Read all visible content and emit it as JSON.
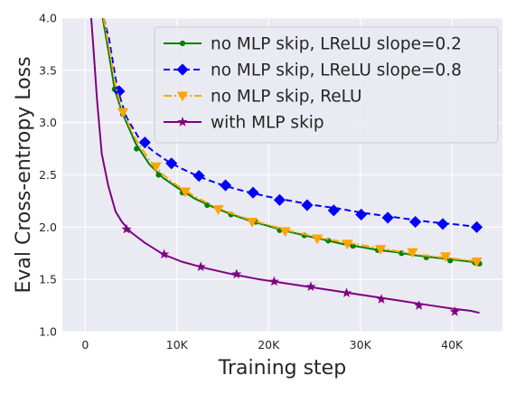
{
  "chart_data": {
    "type": "line",
    "xlabel": "Training step",
    "ylabel": "Eval Cross-entropy Loss",
    "xlim": [
      -2500,
      45500
    ],
    "ylim": [
      1.0,
      4.0
    ],
    "x_ticks": [
      0,
      10000,
      20000,
      30000,
      40000
    ],
    "x_tick_labels": [
      "0",
      "10K",
      "20K",
      "30K",
      "40K"
    ],
    "y_ticks": [
      1.0,
      1.5,
      2.0,
      2.5,
      3.0,
      3.5,
      4.0
    ],
    "y_tick_labels": [
      "1.0",
      "1.5",
      "2.0",
      "2.5",
      "3.0",
      "3.5",
      "4.0"
    ],
    "grid": true,
    "legend_position": "top-right",
    "series": [
      {
        "name": "no MLP skip, LReLU slope=0.2",
        "color": "#008000",
        "marker": "point",
        "dash": "solid",
        "curve": [
          [
            1900,
            4.0
          ],
          [
            2500,
            3.7
          ],
          [
            3200,
            3.32
          ],
          [
            4000,
            3.1
          ],
          [
            5500,
            2.8
          ],
          [
            7000,
            2.6
          ],
          [
            8500,
            2.47
          ],
          [
            10000,
            2.38
          ],
          [
            12000,
            2.27
          ],
          [
            14000,
            2.19
          ],
          [
            16000,
            2.12
          ],
          [
            18000,
            2.06
          ],
          [
            20000,
            2.01
          ],
          [
            22000,
            1.96
          ],
          [
            24000,
            1.92
          ],
          [
            26000,
            1.88
          ],
          [
            28000,
            1.84
          ],
          [
            30000,
            1.81
          ],
          [
            32000,
            1.78
          ],
          [
            34000,
            1.76
          ],
          [
            36000,
            1.73
          ],
          [
            38000,
            1.71
          ],
          [
            40000,
            1.69
          ],
          [
            42000,
            1.67
          ],
          [
            43000,
            1.65
          ]
        ],
        "markers": [
          [
            3200,
            3.32
          ],
          [
            4100,
            3.08
          ],
          [
            5600,
            2.75
          ],
          [
            8000,
            2.5
          ],
          [
            10600,
            2.33
          ],
          [
            13300,
            2.21
          ],
          [
            15900,
            2.12
          ],
          [
            18600,
            2.05
          ],
          [
            21200,
            1.97
          ],
          [
            23900,
            1.92
          ],
          [
            26500,
            1.87
          ],
          [
            29200,
            1.82
          ],
          [
            31900,
            1.78
          ],
          [
            34500,
            1.75
          ],
          [
            37200,
            1.71
          ],
          [
            39800,
            1.68
          ],
          [
            42500,
            1.66
          ],
          [
            43000,
            1.65
          ]
        ]
      },
      {
        "name": "no MLP skip, LReLU slope=0.8",
        "color": "#0000FF",
        "marker": "diamond",
        "dash": "dashed",
        "curve": [
          [
            2000,
            4.0
          ],
          [
            2600,
            3.8
          ],
          [
            3500,
            3.32
          ],
          [
            4500,
            3.05
          ],
          [
            6000,
            2.83
          ],
          [
            7500,
            2.72
          ],
          [
            9000,
            2.63
          ],
          [
            10500,
            2.56
          ],
          [
            12500,
            2.48
          ],
          [
            15000,
            2.4
          ],
          [
            17500,
            2.34
          ],
          [
            20000,
            2.29
          ],
          [
            22500,
            2.25
          ],
          [
            25000,
            2.21
          ],
          [
            27500,
            2.18
          ],
          [
            30000,
            2.14
          ],
          [
            32500,
            2.11
          ],
          [
            35000,
            2.08
          ],
          [
            37500,
            2.05
          ],
          [
            40000,
            2.03
          ],
          [
            43000,
            2.0
          ]
        ],
        "markers": [
          [
            3700,
            3.3
          ],
          [
            6500,
            2.81
          ],
          [
            9400,
            2.61
          ],
          [
            12400,
            2.49
          ],
          [
            15300,
            2.4
          ],
          [
            18300,
            2.33
          ],
          [
            21200,
            2.26
          ],
          [
            24200,
            2.21
          ],
          [
            27100,
            2.16
          ],
          [
            30100,
            2.12
          ],
          [
            33000,
            2.09
          ],
          [
            36000,
            2.05
          ],
          [
            39000,
            2.03
          ],
          [
            42700,
            2.0
          ]
        ]
      },
      {
        "name": "no MLP skip, ReLU",
        "color": "#FFA500",
        "marker": "triangle-down",
        "dash": "dashdot",
        "curve": [
          [
            2000,
            4.0
          ],
          [
            2600,
            3.72
          ],
          [
            3300,
            3.35
          ],
          [
            4000,
            3.12
          ],
          [
            5500,
            2.84
          ],
          [
            7000,
            2.64
          ],
          [
            8500,
            2.5
          ],
          [
            10000,
            2.4
          ],
          [
            12000,
            2.29
          ],
          [
            14000,
            2.2
          ],
          [
            16000,
            2.13
          ],
          [
            18000,
            2.07
          ],
          [
            20000,
            2.02
          ],
          [
            22000,
            1.97
          ],
          [
            24000,
            1.93
          ],
          [
            26000,
            1.89
          ],
          [
            28000,
            1.86
          ],
          [
            30000,
            1.83
          ],
          [
            32000,
            1.8
          ],
          [
            34000,
            1.77
          ],
          [
            36000,
            1.74
          ],
          [
            38000,
            1.72
          ],
          [
            40000,
            1.7
          ],
          [
            42000,
            1.68
          ],
          [
            43000,
            1.67
          ]
        ],
        "markers": [
          [
            4100,
            3.1
          ],
          [
            7700,
            2.58
          ],
          [
            10900,
            2.34
          ],
          [
            14500,
            2.17
          ],
          [
            18200,
            2.05
          ],
          [
            21800,
            1.96
          ],
          [
            25300,
            1.89
          ],
          [
            28600,
            1.84
          ],
          [
            32200,
            1.79
          ],
          [
            35700,
            1.76
          ],
          [
            39300,
            1.72
          ],
          [
            42700,
            1.67
          ]
        ]
      },
      {
        "name": "with MLP skip",
        "color": "#800080",
        "marker": "star",
        "dash": "solid",
        "curve": [
          [
            650,
            4.0
          ],
          [
            900,
            3.7
          ],
          [
            1300,
            3.2
          ],
          [
            1800,
            2.7
          ],
          [
            2500,
            2.4
          ],
          [
            3300,
            2.15
          ],
          [
            4000,
            2.05
          ],
          [
            5000,
            1.95
          ],
          [
            6500,
            1.85
          ],
          [
            8500,
            1.74
          ],
          [
            10500,
            1.67
          ],
          [
            13000,
            1.61
          ],
          [
            16000,
            1.55
          ],
          [
            19000,
            1.5
          ],
          [
            22000,
            1.46
          ],
          [
            25000,
            1.42
          ],
          [
            28000,
            1.38
          ],
          [
            31000,
            1.34
          ],
          [
            34000,
            1.3
          ],
          [
            37000,
            1.26
          ],
          [
            40000,
            1.22
          ],
          [
            42000,
            1.2
          ],
          [
            43000,
            1.18
          ]
        ],
        "markers": [
          [
            4500,
            1.98
          ],
          [
            8600,
            1.74
          ],
          [
            12600,
            1.62
          ],
          [
            16500,
            1.55
          ],
          [
            20600,
            1.48
          ],
          [
            24600,
            1.43
          ],
          [
            28500,
            1.37
          ],
          [
            32300,
            1.31
          ],
          [
            36400,
            1.25
          ],
          [
            40300,
            1.19
          ]
        ]
      }
    ]
  }
}
